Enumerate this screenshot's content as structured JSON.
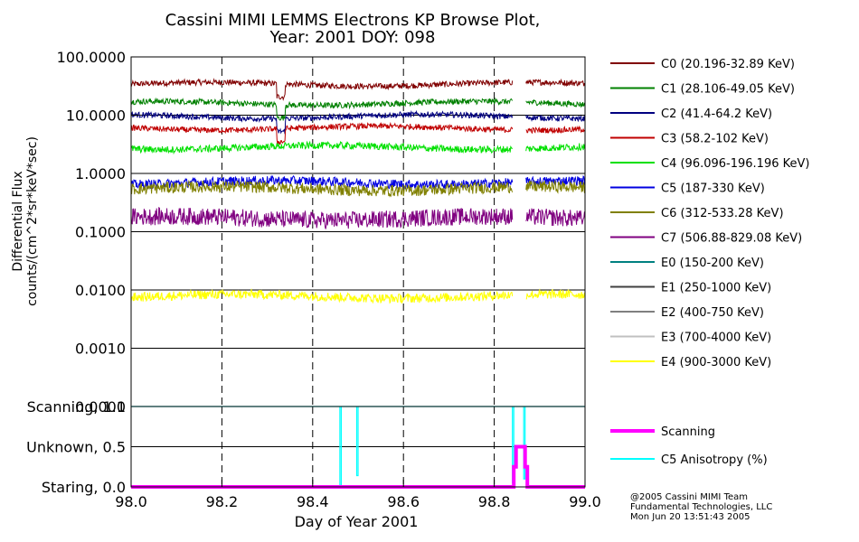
{
  "chart_data": [
    {
      "type": "line",
      "title_line1": "Cassini MIMI LEMMS Electrons KP Browse Plot,",
      "title_line2": "Year: 2001 DOY: 098",
      "ylabel_line1": "Differential Flux",
      "ylabel_line2": "counts/(cm^2*sr*keV*sec)",
      "ylim": [
        0.0001,
        100
      ],
      "log_scale": true,
      "xlim": [
        98.0,
        99.0
      ],
      "grid": true,
      "legend_placement": "right",
      "yticks": [
        {
          "value": 100,
          "label": "100.0000"
        },
        {
          "value": 10,
          "label": "10.0000"
        },
        {
          "value": 1,
          "label": "1.0000"
        },
        {
          "value": 0.1,
          "label": "0.1000"
        },
        {
          "value": 0.01,
          "label": "0.0100"
        },
        {
          "value": 0.001,
          "label": "0.0010"
        },
        {
          "value": 0.0001,
          "label": "0.0001"
        }
      ],
      "data_gap": [
        98.84,
        98.87
      ],
      "series": [
        {
          "name": "C0 (20.196-32.89 KeV)",
          "color": "#800000",
          "level": 34,
          "noise": 0.05
        },
        {
          "name": "C1 (28.106-49.05 KeV)",
          "color": "#008000",
          "level": 16,
          "noise": 0.05
        },
        {
          "name": "C2 (41.4-64.2 KeV)",
          "color": "#000080",
          "level": 9.5,
          "noise": 0.05
        },
        {
          "name": "C3 (58.2-102 KeV)",
          "color": "#c00000",
          "level": 6,
          "noise": 0.05
        },
        {
          "name": "C4 (96.096-196.196 KeV)",
          "color": "#00e000",
          "level": 2.8,
          "noise": 0.06
        },
        {
          "name": "C5 (187-330 KeV)",
          "color": "#0000e0",
          "level": 0.7,
          "noise": 0.08
        },
        {
          "name": "C6 (312-533.28 KeV)",
          "color": "#808000",
          "level": 0.55,
          "noise": 0.1
        },
        {
          "name": "C7 (506.88-829.08 KeV)",
          "color": "#800080",
          "level": 0.17,
          "noise": 0.15
        },
        {
          "name": "E0 (150-200 KeV)",
          "color": "#008080",
          "level": null
        },
        {
          "name": "E1 (250-1000 KeV)",
          "color": "#404040",
          "level": null
        },
        {
          "name": "E2 (400-750 KeV)",
          "color": "#808080",
          "level": null
        },
        {
          "name": "E3 (700-4000 KeV)",
          "color": "#c0c0c0",
          "level": null
        },
        {
          "name": "E4 (900-3000 KeV)",
          "color": "#ffff00",
          "level": 0.0078,
          "noise": 0.08
        }
      ]
    },
    {
      "type": "line",
      "xlim": [
        98.0,
        99.0
      ],
      "ylim": [
        0.0,
        1.0
      ],
      "xlabel": "Day of Year 2001",
      "xticks": [
        {
          "value": 98.0,
          "label": "98.0"
        },
        {
          "value": 98.2,
          "label": "98.2"
        },
        {
          "value": 98.4,
          "label": "98.4"
        },
        {
          "value": 98.6,
          "label": "98.6"
        },
        {
          "value": 98.8,
          "label": "98.8"
        },
        {
          "value": 99.0,
          "label": "99.0"
        }
      ],
      "yticks": [
        {
          "value": 1.0,
          "label": "Scanning, 1.0"
        },
        {
          "value": 0.5,
          "label": "Unknown, 0.5"
        },
        {
          "value": 0.0,
          "label": "Staring, 0.0"
        }
      ],
      "series": [
        {
          "name": "Scanning",
          "color": "#ff00ff",
          "points": [
            [
              98.0,
              0
            ],
            [
              98.843,
              0
            ],
            [
              98.843,
              0.25
            ],
            [
              98.848,
              0.25
            ],
            [
              98.848,
              0.5
            ],
            [
              98.868,
              0.5
            ],
            [
              98.868,
              0.25
            ],
            [
              98.873,
              0.25
            ],
            [
              98.873,
              0
            ],
            [
              99.0,
              0
            ]
          ]
        },
        {
          "name": "C5 Anisotropy (%)",
          "color": "#00ffff",
          "points": [
            [
              98.0,
              1
            ],
            [
              98.46,
              1
            ],
            [
              98.46,
              0.01
            ],
            [
              98.463,
              0.01
            ],
            [
              98.463,
              1
            ],
            [
              98.497,
              1
            ],
            [
              98.497,
              0.14
            ],
            [
              98.5,
              0.14
            ],
            [
              98.5,
              1
            ],
            [
              98.84,
              1
            ],
            [
              98.84,
              0.05
            ],
            [
              98.843,
              0.05
            ],
            [
              98.843,
              1
            ],
            [
              98.865,
              1
            ],
            [
              98.865,
              0.1
            ],
            [
              98.868,
              0.1
            ],
            [
              98.868,
              1
            ],
            [
              99.0,
              1
            ]
          ]
        }
      ]
    }
  ],
  "credits": {
    "line1": "@2005 Cassini MIMI Team",
    "line2": "Fundamental Technologies, LLC",
    "line3": "Mon Jun 20 13:51:43 2005"
  }
}
